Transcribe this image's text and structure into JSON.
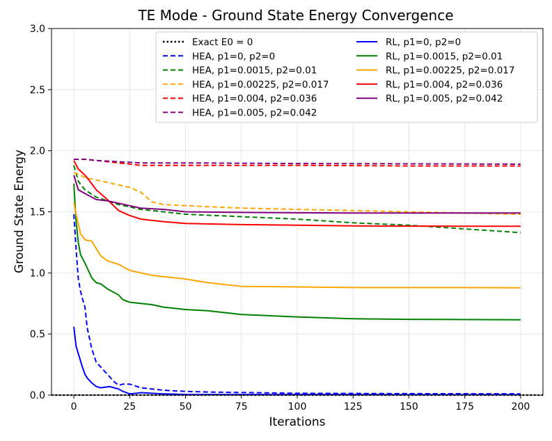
{
  "chart_data": {
    "type": "line",
    "title": "TE Mode - Ground State Energy Convergence",
    "xlabel": "Iterations",
    "ylabel": "Ground State Energy",
    "xlim": [
      -10,
      210
    ],
    "ylim": [
      0,
      3.0
    ],
    "xticks": [
      0,
      25,
      50,
      75,
      100,
      125,
      150,
      175,
      200
    ],
    "yticks": [
      0.0,
      0.5,
      1.0,
      1.5,
      2.0,
      2.5,
      3.0
    ],
    "ytick_labels": [
      "0.0",
      "0.5",
      "1.0",
      "1.5",
      "2.0",
      "2.5",
      "3.0"
    ],
    "grid": true,
    "legend_location": "top-right",
    "series": [
      {
        "name": "Exact E0 = 0",
        "color": "#000000",
        "style": "dotted",
        "x": [
          -10,
          210
        ],
        "y": [
          0,
          0
        ]
      },
      {
        "name": "HEA, p1=0, p2=0",
        "color": "#0000ff",
        "style": "dashed",
        "x": [
          0,
          1,
          2,
          3,
          4,
          5,
          6,
          8,
          10,
          12,
          15,
          18,
          20,
          22,
          25,
          30,
          35,
          40,
          50,
          60,
          80,
          100,
          150,
          200
        ],
        "y": [
          1.48,
          1.2,
          0.95,
          0.85,
          0.78,
          0.72,
          0.55,
          0.38,
          0.27,
          0.23,
          0.17,
          0.11,
          0.08,
          0.09,
          0.09,
          0.06,
          0.05,
          0.04,
          0.03,
          0.025,
          0.02,
          0.015,
          0.012,
          0.01
        ]
      },
      {
        "name": "HEA, p1=0.0015, p2=0.01",
        "color": "#008000",
        "style": "dashed",
        "x": [
          0,
          2,
          5,
          10,
          15,
          20,
          30,
          40,
          50,
          75,
          100,
          125,
          150,
          175,
          200
        ],
        "y": [
          1.88,
          1.75,
          1.68,
          1.62,
          1.59,
          1.56,
          1.52,
          1.5,
          1.48,
          1.46,
          1.44,
          1.41,
          1.39,
          1.36,
          1.33
        ]
      },
      {
        "name": "HEA, p1=0.00225, p2=0.017",
        "color": "#ffa500",
        "style": "dashed",
        "x": [
          0,
          3,
          5,
          10,
          15,
          20,
          25,
          30,
          35,
          40,
          50,
          75,
          100,
          125,
          150,
          175,
          200
        ],
        "y": [
          1.82,
          1.8,
          1.78,
          1.76,
          1.74,
          1.72,
          1.7,
          1.66,
          1.58,
          1.56,
          1.55,
          1.53,
          1.52,
          1.51,
          1.5,
          1.49,
          1.48
        ]
      },
      {
        "name": "HEA, p1=0.004, p2=0.036",
        "color": "#ff0000",
        "style": "dashed",
        "x": [
          0,
          5,
          10,
          20,
          30,
          40,
          60,
          100,
          150,
          200
        ],
        "y": [
          1.93,
          1.93,
          1.92,
          1.9,
          1.88,
          1.88,
          1.88,
          1.88,
          1.875,
          1.875
        ]
      },
      {
        "name": "HEA, p1=0.005, p2=0.042",
        "color": "#800080",
        "style": "dashed",
        "x": [
          0,
          5,
          10,
          20,
          30,
          50,
          100,
          150,
          200
        ],
        "y": [
          1.93,
          1.93,
          1.92,
          1.91,
          1.9,
          1.9,
          1.895,
          1.893,
          1.89
        ]
      },
      {
        "name": "RL, p1=0, p2=0",
        "color": "#0000ff",
        "style": "solid",
        "x": [
          0,
          1,
          2,
          3,
          4,
          5,
          6,
          8,
          10,
          12,
          14,
          16,
          18,
          20,
          22,
          25,
          28,
          30,
          35,
          40,
          50,
          100,
          150,
          200
        ],
        "y": [
          0.56,
          0.4,
          0.34,
          0.28,
          0.22,
          0.17,
          0.14,
          0.1,
          0.07,
          0.06,
          0.065,
          0.07,
          0.06,
          0.05,
          0.03,
          0.01,
          0.015,
          0.02,
          0.015,
          0.01,
          0.005,
          0.004,
          0.003,
          0.003
        ]
      },
      {
        "name": "RL, p1=0.0015, p2=0.01",
        "color": "#008000",
        "style": "solid",
        "x": [
          0,
          1,
          2,
          3,
          5,
          8,
          10,
          12,
          15,
          20,
          22,
          25,
          30,
          35,
          40,
          50,
          60,
          75,
          100,
          125,
          150,
          175,
          200
        ],
        "y": [
          1.73,
          1.42,
          1.25,
          1.15,
          1.08,
          0.96,
          0.92,
          0.91,
          0.87,
          0.82,
          0.78,
          0.76,
          0.75,
          0.74,
          0.72,
          0.7,
          0.69,
          0.66,
          0.64,
          0.625,
          0.62,
          0.618,
          0.616
        ]
      },
      {
        "name": "RL, p1=0.00225, p2=0.017",
        "color": "#ffa500",
        "style": "solid",
        "x": [
          0,
          1,
          2,
          3,
          5,
          8,
          10,
          12,
          15,
          20,
          22,
          25,
          30,
          35,
          40,
          50,
          60,
          75,
          100,
          125,
          150,
          175,
          200
        ],
        "y": [
          1.58,
          1.48,
          1.4,
          1.32,
          1.27,
          1.26,
          1.2,
          1.14,
          1.1,
          1.07,
          1.05,
          1.02,
          1.0,
          0.98,
          0.97,
          0.95,
          0.92,
          0.89,
          0.885,
          0.88,
          0.88,
          0.88,
          0.878
        ]
      },
      {
        "name": "RL, p1=0.004, p2=0.036",
        "color": "#ff0000",
        "style": "solid",
        "x": [
          0,
          2,
          5,
          8,
          10,
          15,
          20,
          25,
          30,
          40,
          50,
          75,
          100,
          125,
          150,
          175,
          200
        ],
        "y": [
          1.92,
          1.85,
          1.8,
          1.73,
          1.68,
          1.6,
          1.51,
          1.47,
          1.44,
          1.42,
          1.405,
          1.395,
          1.39,
          1.385,
          1.383,
          1.382,
          1.382
        ]
      },
      {
        "name": "RL, p1=0.005, p2=0.042",
        "color": "#800080",
        "style": "solid",
        "x": [
          0,
          2,
          5,
          10,
          15,
          20,
          25,
          30,
          40,
          50,
          75,
          100,
          125,
          150,
          175,
          200
        ],
        "y": [
          1.8,
          1.68,
          1.65,
          1.6,
          1.59,
          1.57,
          1.55,
          1.53,
          1.52,
          1.5,
          1.495,
          1.492,
          1.49,
          1.49,
          1.49,
          1.49
        ]
      }
    ],
    "legend_columns": [
      [
        0,
        1,
        2,
        3,
        4,
        5
      ],
      [
        6,
        7,
        8,
        9,
        10
      ]
    ]
  }
}
